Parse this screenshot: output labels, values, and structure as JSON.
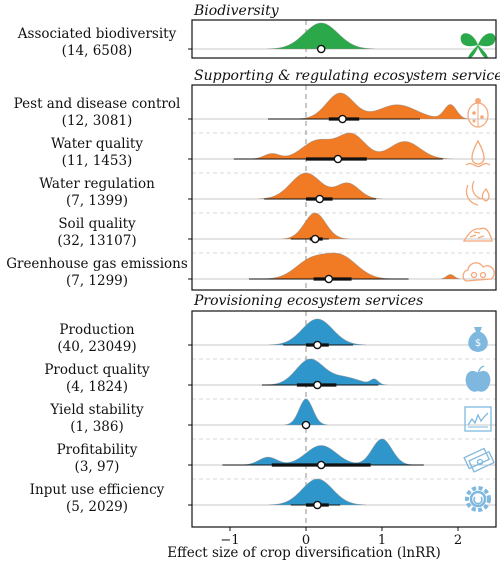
{
  "chart_data": {
    "type": "density-ridgeline",
    "xlabel": "Effect size of crop diversification (lnRR)",
    "xlim": [
      -1.5,
      2.5
    ],
    "xticks": [
      -1,
      0,
      1,
      2
    ],
    "reference_line_x": 0,
    "panels": [
      {
        "title": "Biodiversity",
        "color": "#2ba84a",
        "icon": "butterfly-icon",
        "rows": [
          {
            "label": "Associated biodiversity",
            "n": "(14, 6508)",
            "mean": 0.2,
            "ci": [
              0.2,
              0.2
            ],
            "iqr": [
              0.2,
              0.2
            ],
            "modes": [
              {
                "mu": 0.2,
                "sd": 0.22,
                "w": 1.0
              }
            ]
          }
        ]
      },
      {
        "title": "Supporting & regulating ecosystem services",
        "color": "#f07b24",
        "icon_color": "#f5a87a",
        "rows": [
          {
            "label": "Pest and disease control",
            "n": "(12, 3081)",
            "mean": 0.48,
            "ci": [
              -0.5,
              1.5
            ],
            "iqr": [
              0.3,
              0.7
            ],
            "icon": "ladybug-icon",
            "modes": [
              {
                "mu": 0.45,
                "sd": 0.18,
                "w": 1.0
              },
              {
                "mu": 1.2,
                "sd": 0.25,
                "w": 0.55
              },
              {
                "mu": 1.9,
                "sd": 0.08,
                "w": 0.55
              }
            ]
          },
          {
            "label": "Water quality",
            "n": "(11, 1453)",
            "mean": 0.42,
            "ci": [
              -0.95,
              1.8
            ],
            "iqr": [
              0.0,
              0.8
            ],
            "icon": "water-drop-icon",
            "modes": [
              {
                "mu": -0.45,
                "sd": 0.1,
                "w": 0.22
              },
              {
                "mu": 0.15,
                "sd": 0.2,
                "w": 0.75
              },
              {
                "mu": 0.6,
                "sd": 0.18,
                "w": 1.0
              },
              {
                "mu": 1.3,
                "sd": 0.2,
                "w": 0.72
              }
            ]
          },
          {
            "label": "Water regulation",
            "n": "(7, 1399)",
            "mean": 0.18,
            "ci": [
              -0.55,
              0.92
            ],
            "iqr": [
              0.0,
              0.35
            ],
            "icon": "water-cycle-icon",
            "modes": [
              {
                "mu": 0.0,
                "sd": 0.2,
                "w": 1.0
              },
              {
                "mu": 0.55,
                "sd": 0.15,
                "w": 0.6
              }
            ]
          },
          {
            "label": "Soil quality",
            "n": "(32, 13107)",
            "mean": 0.12,
            "ci": [
              -0.2,
              0.3
            ],
            "iqr": [
              0.05,
              0.22
            ],
            "icon": "soil-icon",
            "modes": [
              {
                "mu": 0.12,
                "sd": 0.14,
                "w": 1.0
              }
            ]
          },
          {
            "label": "Greenhouse gas emissions",
            "n": "(7, 1299)",
            "mean": 0.3,
            "ci": [
              -0.75,
              1.35
            ],
            "iqr": [
              0.1,
              0.6
            ],
            "icon": "cloud-icon",
            "modes": [
              {
                "mu": 0.05,
                "sd": 0.2,
                "w": 0.75
              },
              {
                "mu": 0.45,
                "sd": 0.22,
                "w": 1.0
              },
              {
                "mu": 1.9,
                "sd": 0.05,
                "w": 0.2
              }
            ]
          }
        ]
      },
      {
        "title": "Provisioning ecosystem services",
        "color": "#2f96cb",
        "icon_color": "#7fb8de",
        "rows": [
          {
            "label": "Production",
            "n": "(40, 23049)",
            "mean": 0.15,
            "ci": [
              -0.3,
              0.62
            ],
            "iqr": [
              0.0,
              0.3
            ],
            "icon": "money-bag-icon",
            "modes": [
              {
                "mu": 0.15,
                "sd": 0.2,
                "w": 1.0
              }
            ]
          },
          {
            "label": "Product quality",
            "n": "(4, 1824)",
            "mean": 0.15,
            "ci": [
              -0.58,
              0.95
            ],
            "iqr": [
              -0.12,
              0.4
            ],
            "icon": "apple-icon",
            "modes": [
              {
                "mu": 0.05,
                "sd": 0.18,
                "w": 1.0
              },
              {
                "mu": 0.5,
                "sd": 0.2,
                "w": 0.3
              },
              {
                "mu": 0.9,
                "sd": 0.05,
                "w": 0.2
              }
            ]
          },
          {
            "label": "Yield stability",
            "n": "(1, 386)",
            "mean": 0.0,
            "ci": [
              0.0,
              0.0
            ],
            "iqr": [
              0.0,
              0.0
            ],
            "icon": "line-chart-icon",
            "modes": [
              {
                "mu": 0.0,
                "sd": 0.09,
                "w": 1.0
              }
            ]
          },
          {
            "label": "Profitability",
            "n": "(3, 97)",
            "mean": 0.2,
            "ci": [
              -1.1,
              1.55
            ],
            "iqr": [
              -0.45,
              0.85
            ],
            "icon": "cash-icon",
            "modes": [
              {
                "mu": -0.5,
                "sd": 0.12,
                "w": 0.3
              },
              {
                "mu": 0.2,
                "sd": 0.2,
                "w": 0.75
              },
              {
                "mu": 1.0,
                "sd": 0.13,
                "w": 1.0
              }
            ]
          },
          {
            "label": "Input use efficiency",
            "n": "(5, 2029)",
            "mean": 0.15,
            "ci": [
              -0.2,
              0.45
            ],
            "iqr": [
              0.0,
              0.3
            ],
            "icon": "gear-icon",
            "modes": [
              {
                "mu": 0.15,
                "sd": 0.2,
                "w": 1.0
              }
            ]
          }
        ]
      }
    ]
  }
}
